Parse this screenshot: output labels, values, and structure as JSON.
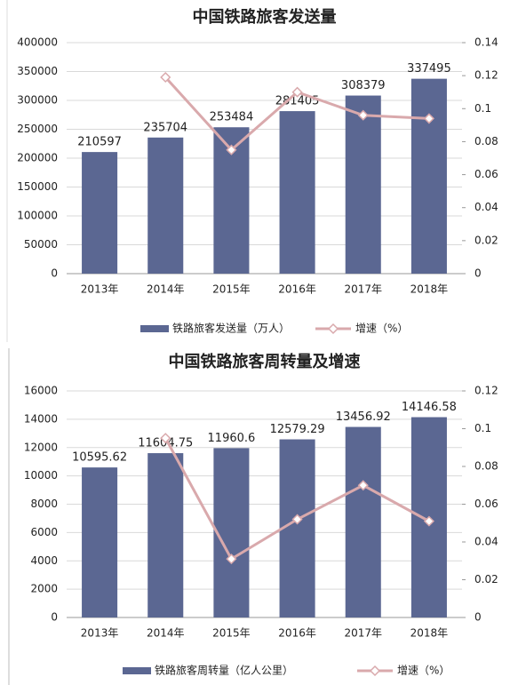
{
  "chart_data": [
    {
      "type": "bar",
      "title": "中国铁路旅客发送量",
      "categories": [
        "2013年",
        "2014年",
        "2015年",
        "2016年",
        "2017年",
        "2018年"
      ],
      "series": [
        {
          "name": "铁路旅客发送量（万人）",
          "color": "#5b6792",
          "values": [
            210597,
            235704,
            253484,
            281405,
            308379,
            337495
          ]
        },
        {
          "name": "增速（%）",
          "color": "#d9a9ac",
          "axis": "y2",
          "values": [
            null,
            0.119,
            0.075,
            0.11,
            0.096,
            0.094
          ]
        }
      ],
      "ylim": [
        0,
        400000
      ],
      "yticks": [
        0,
        50000,
        100000,
        150000,
        200000,
        250000,
        300000,
        350000,
        400000
      ],
      "y2lim": [
        0,
        0.14
      ],
      "y2ticks": [
        0,
        0.02,
        0.04,
        0.06,
        0.08,
        0.1,
        0.12,
        0.14
      ],
      "grid": true,
      "legend": "bottom"
    },
    {
      "type": "bar",
      "title": "中国铁路旅客周转量及增速",
      "categories": [
        "2013年",
        "2014年",
        "2015年",
        "2016年",
        "2017年",
        "2018年"
      ],
      "series": [
        {
          "name": "铁路旅客周转量（亿人公里）",
          "color": "#5b6792",
          "values": [
            10595.62,
            11604.75,
            11960.6,
            12579.29,
            13456.92,
            14146.58
          ]
        },
        {
          "name": "增速（%）",
          "color": "#d9a9ac",
          "axis": "y2",
          "values": [
            null,
            0.095,
            0.031,
            0.052,
            0.07,
            0.051
          ]
        }
      ],
      "ylim": [
        0,
        16000
      ],
      "yticks": [
        0,
        2000,
        4000,
        6000,
        8000,
        10000,
        12000,
        14000,
        16000
      ],
      "y2lim": [
        0,
        0.12
      ],
      "y2ticks": [
        0,
        0.02,
        0.04,
        0.06,
        0.08,
        0.1,
        0.12
      ],
      "grid": true,
      "legend": "bottom"
    }
  ]
}
